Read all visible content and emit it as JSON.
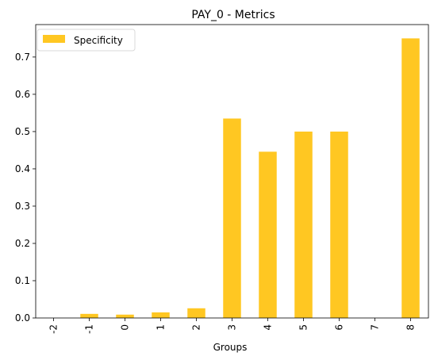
{
  "chart_data": {
    "type": "bar",
    "title": "PAY_0 - Metrics",
    "xlabel": "Groups",
    "ylabel": "",
    "categories": [
      "-2",
      "-1",
      "0",
      "1",
      "2",
      "3",
      "4",
      "5",
      "6",
      "7",
      "8"
    ],
    "series": [
      {
        "name": "Specificity",
        "color": "#ffc722",
        "values": [
          0.0,
          0.011,
          0.009,
          0.015,
          0.026,
          0.535,
          0.446,
          0.5,
          0.5,
          0.0,
          0.75
        ]
      }
    ],
    "ylim": [
      0,
      0.787
    ],
    "yticks": [
      "0.0",
      "0.1",
      "0.2",
      "0.3",
      "0.4",
      "0.5",
      "0.6",
      "0.7"
    ],
    "ytick_values": [
      0,
      0.1,
      0.2,
      0.3,
      0.4,
      0.5,
      0.6,
      0.7
    ],
    "x_tick_rotation": 90,
    "legend_position": "top-left",
    "grid": false
  }
}
